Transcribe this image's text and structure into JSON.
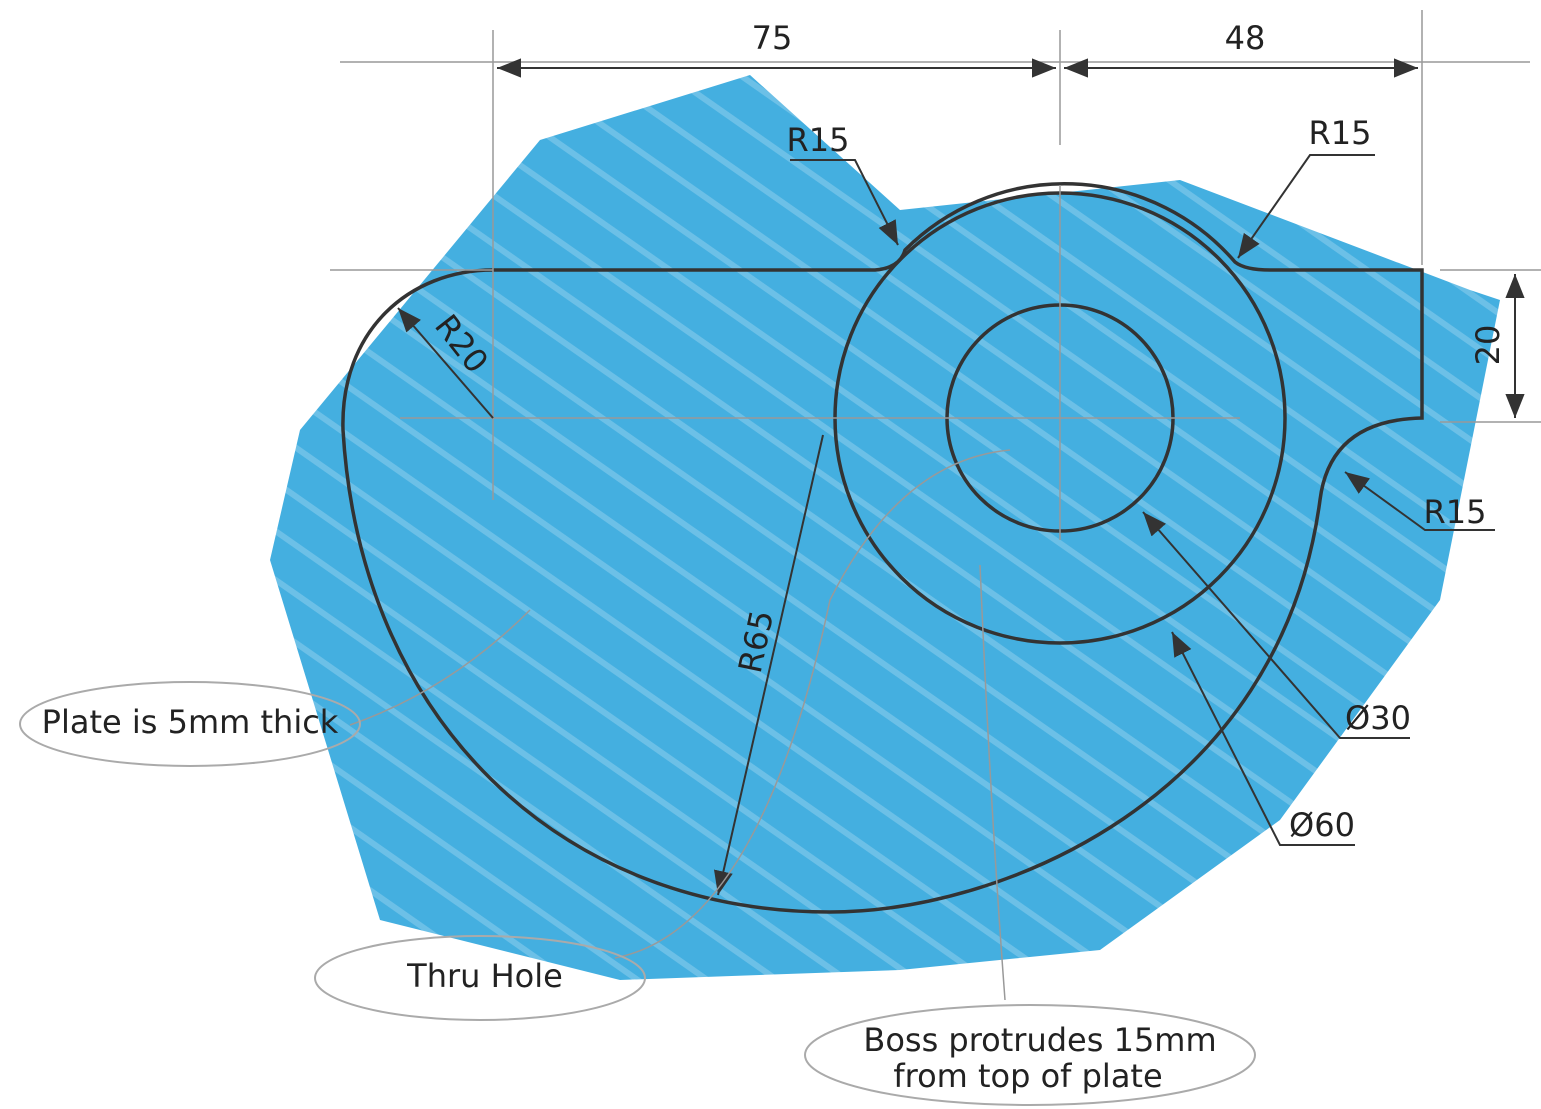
{
  "dimensions": [
    {
      "label": "75"
    },
    {
      "label": "48"
    },
    {
      "label": "20"
    },
    {
      "label": "R15"
    },
    {
      "label": "R15"
    },
    {
      "label": "R15"
    },
    {
      "label": "R20"
    },
    {
      "label": "R65"
    },
    {
      "label": "Ø30"
    },
    {
      "label": "Ø60"
    }
  ],
  "notes": [
    {
      "label": "Plate is 5mm thick"
    },
    {
      "label": "Thru Hole"
    },
    {
      "lines": [
        "Boss protrudes 15mm",
        "from top of plate"
      ]
    }
  ]
}
